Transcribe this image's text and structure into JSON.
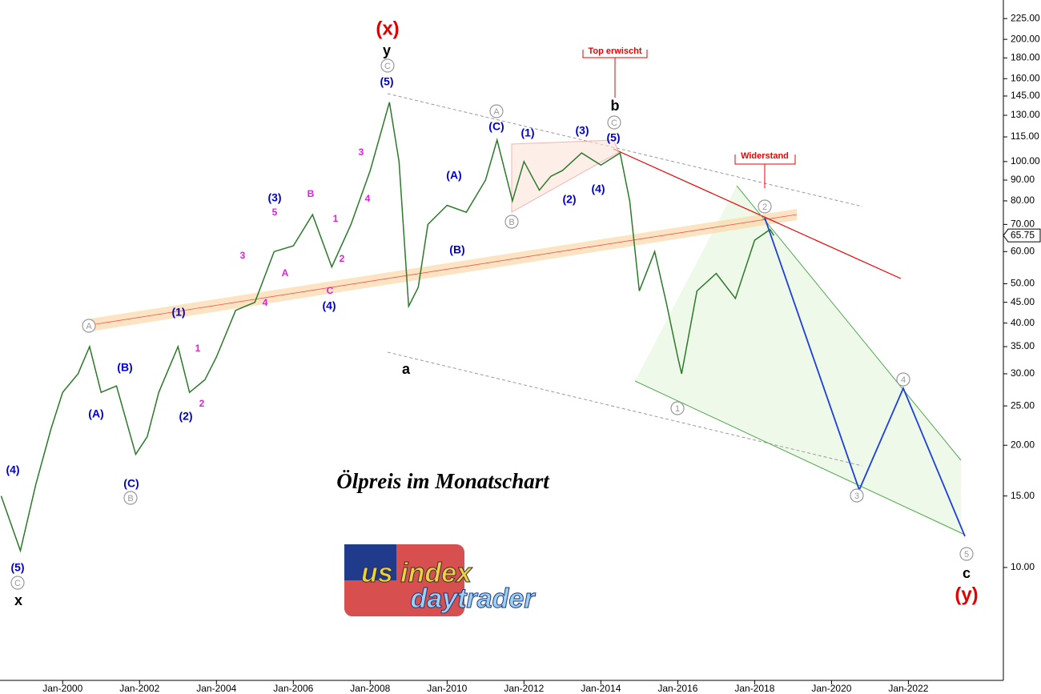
{
  "chart_data": {
    "type": "line",
    "title": "Ölpreis im Monatschart",
    "logo_text": [
      "us index",
      "daytrader"
    ],
    "callouts": [
      "Top erwischt",
      "Widerstand"
    ],
    "current_value": 65.75,
    "log_scale": true,
    "color": "#2a7a2a",
    "x": [
      1998.4,
      1998.9,
      1999.3,
      1999.7,
      2000.0,
      2000.4,
      2000.7,
      2001.0,
      2001.4,
      2001.9,
      2002.2,
      2002.5,
      2003.0,
      2003.3,
      2003.7,
      2004.0,
      2004.5,
      2005.0,
      2005.5,
      2006.0,
      2006.5,
      2007.0,
      2007.5,
      2008.0,
      2008.5,
      2008.75,
      2009.0,
      2009.25,
      2009.5,
      2010.0,
      2010.5,
      2011.0,
      2011.3,
      2011.7,
      2012.0,
      2012.4,
      2012.7,
      2013.0,
      2013.5,
      2014.0,
      2014.5,
      2014.75,
      2015.0,
      2015.4,
      2015.7,
      2016.0,
      2016.1,
      2016.5,
      2017.0,
      2017.5,
      2018.0,
      2018.4,
      2018.5
    ],
    "values": [
      15,
      11,
      16,
      22,
      27,
      30,
      35,
      27,
      28,
      19,
      21,
      27,
      35,
      27,
      29,
      33,
      43,
      45,
      60,
      62,
      74,
      55,
      70,
      95,
      140,
      100,
      44,
      49,
      70,
      78,
      75,
      90,
      113,
      80,
      100,
      85,
      92,
      95,
      105,
      98,
      105,
      80,
      48,
      60,
      45,
      33,
      30,
      48,
      53,
      46,
      64,
      68,
      65.75
    ],
    "xlim": [
      1998.37,
      2024.47
    ],
    "ylim": [
      5.27,
      250
    ],
    "xticks": [
      {
        "value": 2000,
        "label": "Jan-2000"
      },
      {
        "value": 2002,
        "label": "Jan-2002"
      },
      {
        "value": 2004,
        "label": "Jan-2004"
      },
      {
        "value": 2006,
        "label": "Jan-2006"
      },
      {
        "value": 2008,
        "label": "Jan-2008"
      },
      {
        "value": 2010,
        "label": "Jan-2010"
      },
      {
        "value": 2012,
        "label": "Jan-2012"
      },
      {
        "value": 2014,
        "label": "Jan-2014"
      },
      {
        "value": 2016,
        "label": "Jan-2016"
      },
      {
        "value": 2018,
        "label": "Jan-2018"
      },
      {
        "value": 2020,
        "label": "Jan-2020"
      },
      {
        "value": 2022,
        "label": "Jan-2022"
      }
    ],
    "yticks": [
      {
        "value": 225,
        "label": "225.00"
      },
      {
        "value": 200,
        "label": "200.00"
      },
      {
        "value": 180,
        "label": "180.00"
      },
      {
        "value": 160,
        "label": "160.00"
      },
      {
        "value": 145,
        "label": "145.00"
      },
      {
        "value": 130,
        "label": "130.00"
      },
      {
        "value": 115,
        "label": "115.00"
      },
      {
        "value": 100,
        "label": "100.00"
      },
      {
        "value": 90,
        "label": "90.00"
      },
      {
        "value": 80,
        "label": "80.00"
      },
      {
        "value": 70,
        "label": "70.00"
      },
      {
        "value": 60,
        "label": "60.00"
      },
      {
        "value": 50,
        "label": "50.00"
      },
      {
        "value": 45,
        "label": "45.00"
      },
      {
        "value": 40,
        "label": "40.00"
      },
      {
        "value": 35,
        "label": "35.00"
      },
      {
        "value": 30,
        "label": "30.00"
      },
      {
        "value": 25,
        "label": "25.00"
      },
      {
        "value": 20,
        "label": "20.00"
      },
      {
        "value": 15,
        "label": "15.00"
      },
      {
        "value": 10,
        "label": "10.00"
      }
    ],
    "annotations": [
      "C",
      "B",
      "A",
      "C",
      "A",
      "B",
      "C",
      "1",
      "2",
      "3",
      "4",
      "5",
      "(4)",
      "(5)",
      "(A)",
      "(B)",
      "(C)",
      "(1)",
      "(2)",
      "(3)",
      "(4)",
      "(5)",
      "(A)",
      "(B)",
      "(C)",
      "(1)",
      "(2)",
      "(3)",
      "(4)",
      "(5)",
      "1",
      "2",
      "3",
      "4",
      "A",
      "5",
      "B",
      "C",
      "1",
      "2",
      "3",
      "4",
      "x",
      "y",
      "a",
      "b",
      "c",
      "(x)",
      "(y)"
    ]
  }
}
